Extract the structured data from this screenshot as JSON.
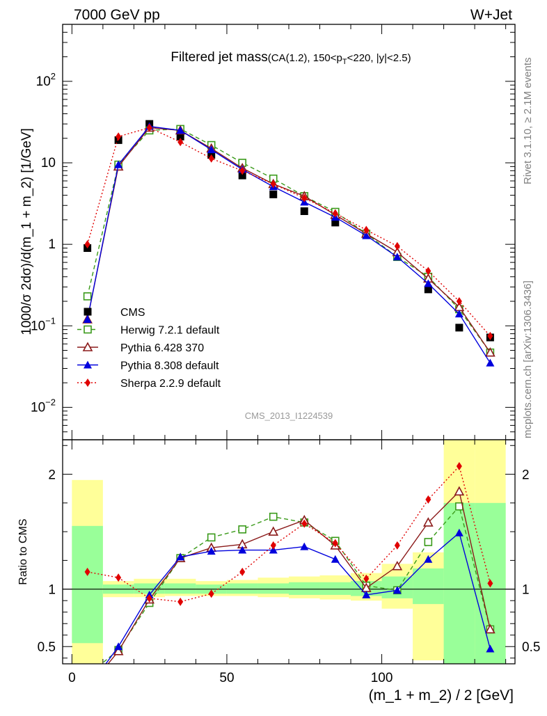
{
  "header": {
    "left": "7000 GeV pp",
    "right": "W+Jet"
  },
  "title": {
    "main": "Filtered jet mass",
    "sub_prefix": "(CA(1.2), 150<p",
    "sub_subscript": "T",
    "sub_suffix": "<220, |y|<2.5)"
  },
  "side_labels": {
    "rivet": "Rivet 3.1.10, ≥ 2.1M events",
    "mcplots": "mcplots.cern.ch [arXiv:1306.3436]"
  },
  "watermark": "CMS_2013_I1224539",
  "colors": {
    "cms": "#000000",
    "herwig": "#3a9a1a",
    "pythia6": "#8b1a1a",
    "pythia8": "#0000dd",
    "sherpa": "#e00000",
    "band_yellow": "#ffff99",
    "band_green": "#99ff99"
  },
  "chart_data": [
    {
      "type": "line",
      "panel": "main",
      "ylabel": "1000/σ 2dσ)/d(m_1 + m_2) [1/GeV]",
      "yscale": "log",
      "ylim": [
        0.004,
        500
      ],
      "xlim": [
        -3,
        143
      ],
      "yticks": [
        {
          "v": 0.01,
          "base": "10",
          "exp": "−2"
        },
        {
          "v": 0.1,
          "base": "10",
          "exp": "−1"
        },
        {
          "v": 1,
          "base": "1",
          "exp": ""
        },
        {
          "v": 10,
          "base": "10",
          "exp": ""
        },
        {
          "v": 100,
          "base": "10",
          "exp": "2"
        }
      ],
      "x": [
        5,
        15,
        25,
        35,
        45,
        55,
        65,
        75,
        85,
        95,
        105,
        115,
        125,
        135
      ],
      "series": [
        {
          "name": "CMS",
          "key": "cms",
          "marker": "square",
          "values": [
            0.9,
            19,
            30,
            21,
            12.5,
            7,
            4.1,
            2.55,
            1.85,
            1.3,
            0.7,
            0.28,
            0.095,
            0.072
          ]
        },
        {
          "name": "Herwig 7.2.1 default",
          "key": "herwig",
          "marker": "open-square",
          "line": "dashed",
          "values": [
            0.23,
            9.5,
            25,
            26,
            16.5,
            10,
            6.4,
            3.9,
            2.5,
            1.35,
            0.7,
            0.4,
            0.16,
            0.047
          ]
        },
        {
          "name": "Pythia 6.428 370",
          "key": "pythia6",
          "marker": "open-triangle",
          "line": "solid",
          "values": [
            0.12,
            9,
            27,
            25,
            15,
            8.6,
            5.5,
            3.9,
            2.3,
            1.35,
            0.8,
            0.38,
            0.17,
            0.047
          ]
        },
        {
          "name": "Pythia 8.308 default",
          "key": "pythia8",
          "marker": "triangle",
          "line": "solid",
          "values": [
            0.12,
            9.5,
            28,
            25,
            14.5,
            8.3,
            5.1,
            3.3,
            2.15,
            1.28,
            0.7,
            0.33,
            0.14,
            0.035
          ]
        },
        {
          "name": "Sherpa 2.2.9 default",
          "key": "sherpa",
          "marker": "diamond",
          "line": "dotted",
          "values": [
            1.0,
            21,
            27,
            18,
            11.3,
            8.0,
            5.5,
            3.7,
            2.4,
            1.5,
            0.95,
            0.47,
            0.2,
            0.075
          ]
        }
      ]
    },
    {
      "type": "line",
      "panel": "ratio",
      "ylabel": "Ratio to CMS",
      "ylim": [
        0.35,
        2.3
      ],
      "xlim": [
        -3,
        143
      ],
      "yticks": [
        {
          "v": 0.5,
          "label": "0.5"
        },
        {
          "v": 1,
          "label": "1"
        },
        {
          "v": 2,
          "label": "2"
        }
      ],
      "xticks": [
        {
          "v": 0,
          "label": "0"
        },
        {
          "v": 50,
          "label": "50"
        },
        {
          "v": 100,
          "label": "100"
        }
      ],
      "xlabel": "(m_1 + m_2) / 2 [GeV]",
      "bands": [
        {
          "x0": 0,
          "x1": 10,
          "y_lo": 0.53,
          "y_hi": 1.55,
          "yl_lo": 0.35,
          "yl_hi": 1.95
        },
        {
          "x0": 10,
          "x1": 20,
          "y_lo": 0.96,
          "y_hi": 1.04,
          "yl_lo": 0.93,
          "yl_hi": 1.07
        },
        {
          "x0": 20,
          "x1": 30,
          "y_lo": 0.96,
          "y_hi": 1.05,
          "yl_lo": 0.93,
          "yl_hi": 1.09
        },
        {
          "x0": 30,
          "x1": 40,
          "y_lo": 0.96,
          "y_hi": 1.05,
          "yl_lo": 0.94,
          "yl_hi": 1.09
        },
        {
          "x0": 40,
          "x1": 50,
          "y_lo": 0.96,
          "y_hi": 1.04,
          "yl_lo": 0.94,
          "yl_hi": 1.07
        },
        {
          "x0": 50,
          "x1": 60,
          "y_lo": 0.96,
          "y_hi": 1.05,
          "yl_lo": 0.94,
          "yl_hi": 1.08
        },
        {
          "x0": 60,
          "x1": 70,
          "y_lo": 0.96,
          "y_hi": 1.05,
          "yl_lo": 0.93,
          "yl_hi": 1.1
        },
        {
          "x0": 70,
          "x1": 80,
          "y_lo": 0.95,
          "y_hi": 1.06,
          "yl_lo": 0.92,
          "yl_hi": 1.11
        },
        {
          "x0": 80,
          "x1": 90,
          "y_lo": 0.95,
          "y_hi": 1.06,
          "yl_lo": 0.91,
          "yl_hi": 1.12
        },
        {
          "x0": 90,
          "x1": 100,
          "y_lo": 0.94,
          "y_hi": 1.07,
          "yl_lo": 0.9,
          "yl_hi": 1.14
        },
        {
          "x0": 100,
          "x1": 110,
          "y_lo": 0.92,
          "y_hi": 1.11,
          "yl_lo": 0.83,
          "yl_hi": 1.22
        },
        {
          "x0": 110,
          "x1": 120,
          "y_lo": 0.87,
          "y_hi": 1.18,
          "yl_lo": 0.38,
          "yl_hi": 1.32
        },
        {
          "x0": 120,
          "x1": 130,
          "y_lo": 0.35,
          "y_hi": 1.75,
          "yl_lo": 0.35,
          "yl_hi": 2.3
        },
        {
          "x0": 130,
          "x1": 140,
          "y_lo": 0.35,
          "y_hi": 1.75,
          "yl_lo": 0.35,
          "yl_hi": 2.3
        }
      ],
      "x": [
        5,
        15,
        25,
        35,
        45,
        55,
        65,
        75,
        85,
        95,
        105,
        115,
        125,
        135
      ],
      "series": [
        {
          "name": "Herwig 7.2.1 default",
          "key": "herwig",
          "marker": "open-square",
          "line": "dashed",
          "values": [
            0.25,
            0.47,
            0.88,
            1.27,
            1.45,
            1.52,
            1.63,
            1.58,
            1.42,
            1.03,
            0.99,
            1.41,
            1.72,
            0.65
          ]
        },
        {
          "name": "Pythia 6.428 370",
          "key": "pythia6",
          "marker": "open-triangle",
          "line": "solid",
          "values": [
            0.13,
            0.46,
            0.91,
            1.27,
            1.36,
            1.39,
            1.5,
            1.6,
            1.38,
            1.01,
            1.2,
            1.58,
            1.85,
            0.65
          ]
        },
        {
          "name": "Pythia 8.308 default",
          "key": "pythia8",
          "marker": "triangle",
          "line": "solid",
          "values": [
            0.13,
            0.5,
            0.95,
            1.28,
            1.33,
            1.34,
            1.34,
            1.37,
            1.26,
            0.95,
            0.99,
            1.26,
            1.49,
            0.48
          ]
        },
        {
          "name": "Sherpa 2.2.9 default",
          "key": "sherpa",
          "marker": "diamond",
          "line": "dotted",
          "values": [
            1.15,
            1.1,
            0.92,
            0.89,
            0.96,
            1.15,
            1.38,
            1.57,
            1.4,
            1.09,
            1.38,
            1.78,
            2.07,
            1.05
          ]
        }
      ]
    }
  ]
}
